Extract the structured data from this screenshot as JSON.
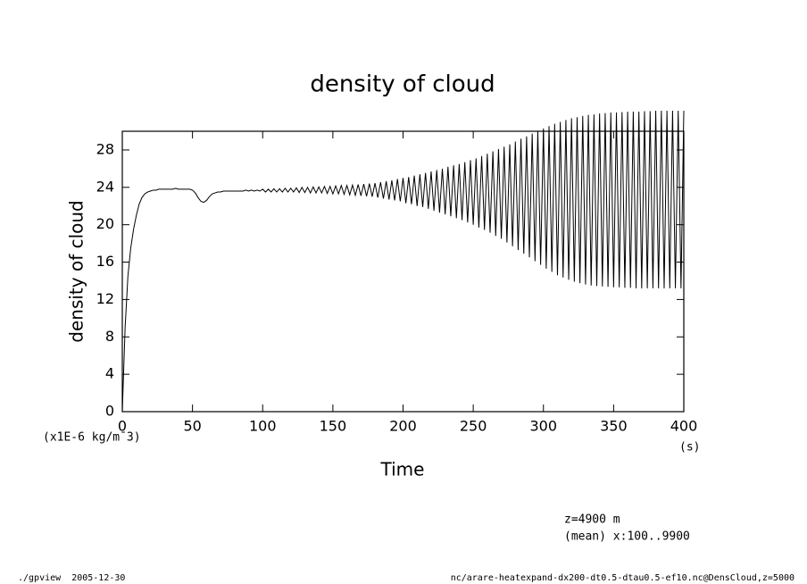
{
  "chart_data": {
    "type": "line",
    "title": "density of cloud",
    "y_label": "density of cloud",
    "x_label": "Time",
    "y_unit": "(x1E-6 kg/m¯3)",
    "x_unit": "(s)",
    "annotations": [
      "z=4900 m",
      "(mean) x:100..9900"
    ],
    "footer_left": "./gpview  2005-12-30",
    "footer_right": "nc/arare-heatexpand-dx200-dt0.5-dtau0.5-ef10.nc@DensCloud,z=5000",
    "color": "#000000",
    "xlim": [
      0,
      400
    ],
    "ylim": [
      0,
      30
    ],
    "xticks": [
      0,
      50,
      100,
      150,
      200,
      250,
      300,
      350,
      400
    ],
    "yticks": [
      0,
      4,
      8,
      12,
      16,
      20,
      24,
      28
    ],
    "x": [
      0,
      2,
      4,
      6,
      8,
      10,
      12,
      14,
      16,
      18,
      20,
      22,
      24,
      26,
      28,
      30,
      32,
      34,
      36,
      38,
      40,
      42,
      44,
      46,
      48,
      50,
      52,
      54,
      56,
      58,
      60,
      62,
      64,
      66,
      68,
      70,
      72,
      74,
      76,
      78,
      80,
      82,
      84,
      86,
      88,
      90,
      92,
      94,
      96,
      98,
      100,
      102,
      104,
      106,
      108,
      110,
      112,
      114,
      116,
      118,
      120,
      122,
      124,
      126,
      128,
      130,
      132,
      134,
      136,
      138,
      140,
      142,
      144,
      146,
      148,
      150,
      152,
      154,
      156,
      158,
      160,
      162,
      164,
      166,
      168,
      170,
      172,
      174,
      176,
      178,
      180,
      182,
      184,
      186,
      188,
      190,
      192,
      194,
      196,
      198,
      200,
      202,
      204,
      206,
      208,
      210,
      212,
      214,
      216,
      218,
      220,
      222,
      224,
      226,
      228,
      230,
      232,
      234,
      236,
      238,
      240,
      242,
      244,
      246,
      248,
      250,
      252,
      254,
      256,
      258,
      260,
      262,
      264,
      266,
      268,
      270,
      272,
      274,
      276,
      278,
      280,
      282,
      284,
      286,
      288,
      290,
      292,
      294,
      296,
      298,
      300,
      302,
      304,
      306,
      308,
      310,
      312,
      314,
      316,
      318,
      320,
      322,
      324,
      326,
      328,
      330,
      332,
      334,
      336,
      338,
      340,
      342,
      344,
      346,
      348,
      350,
      352,
      354,
      356,
      358,
      360,
      362,
      364,
      366,
      368,
      370,
      372,
      374,
      376,
      378,
      380,
      382,
      384,
      386,
      388,
      390,
      392,
      394,
      396,
      398,
      400
    ],
    "values": [
      0,
      9,
      14.5,
      17.5,
      19.5,
      21,
      22.2,
      22.9,
      23.3,
      23.5,
      23.6,
      23.7,
      23.7,
      23.8,
      23.8,
      23.8,
      23.8,
      23.8,
      23.8,
      23.9,
      23.8,
      23.8,
      23.8,
      23.8,
      23.8,
      23.7,
      23.4,
      22.9,
      22.5,
      22.4,
      22.6,
      23.0,
      23.3,
      23.4,
      23.5,
      23.5,
      23.6,
      23.6,
      23.6,
      23.6,
      23.6,
      23.6,
      23.6,
      23.6,
      23.7,
      23.6,
      23.7,
      23.6,
      23.7,
      23.6,
      23.8,
      23.5,
      23.8,
      23.5,
      23.85,
      23.5,
      23.85,
      23.5,
      23.9,
      23.5,
      23.9,
      23.5,
      23.95,
      23.45,
      24.0,
      23.45,
      24.0,
      23.4,
      24.05,
      23.4,
      24.05,
      23.4,
      24.1,
      23.35,
      24.1,
      23.3,
      24.15,
      23.3,
      24.2,
      23.25,
      24.2,
      23.2,
      24.25,
      23.15,
      24.3,
      23.1,
      24.35,
      23.05,
      24.4,
      23.0,
      24.45,
      22.9,
      24.55,
      22.8,
      24.65,
      22.7,
      24.75,
      22.6,
      24.9,
      22.5,
      25.0,
      22.3,
      25.1,
      22.2,
      25.25,
      22.0,
      25.4,
      21.9,
      25.55,
      21.7,
      25.7,
      21.5,
      25.85,
      21.3,
      26.0,
      21.1,
      26.2,
      20.9,
      26.35,
      20.7,
      26.5,
      20.5,
      26.7,
      20.25,
      26.9,
      20.0,
      27.1,
      19.7,
      27.35,
      19.45,
      27.6,
      19.15,
      27.85,
      18.8,
      28.1,
      18.5,
      28.35,
      18.1,
      28.6,
      17.7,
      28.9,
      17.3,
      29.2,
      16.9,
      29.45,
      16.5,
      29.75,
      16.1,
      30.0,
      15.7,
      30.3,
      15.3,
      30.55,
      14.95,
      30.8,
      14.6,
      31.0,
      14.35,
      31.2,
      14.1,
      31.4,
      13.9,
      31.5,
      13.75,
      31.65,
      13.6,
      31.75,
      13.5,
      31.8,
      13.45,
      31.9,
      13.4,
      31.95,
      13.35,
      32.0,
      13.3,
      32.0,
      13.3,
      32.05,
      13.25,
      32.1,
      13.25,
      32.1,
      13.2,
      32.1,
      13.2,
      32.15,
      13.2,
      32.15,
      13.2,
      32.2,
      13.2,
      32.2,
      13.2,
      32.2,
      13.2,
      32.2,
      13.2,
      32.2,
      13.2,
      32.2
    ]
  }
}
